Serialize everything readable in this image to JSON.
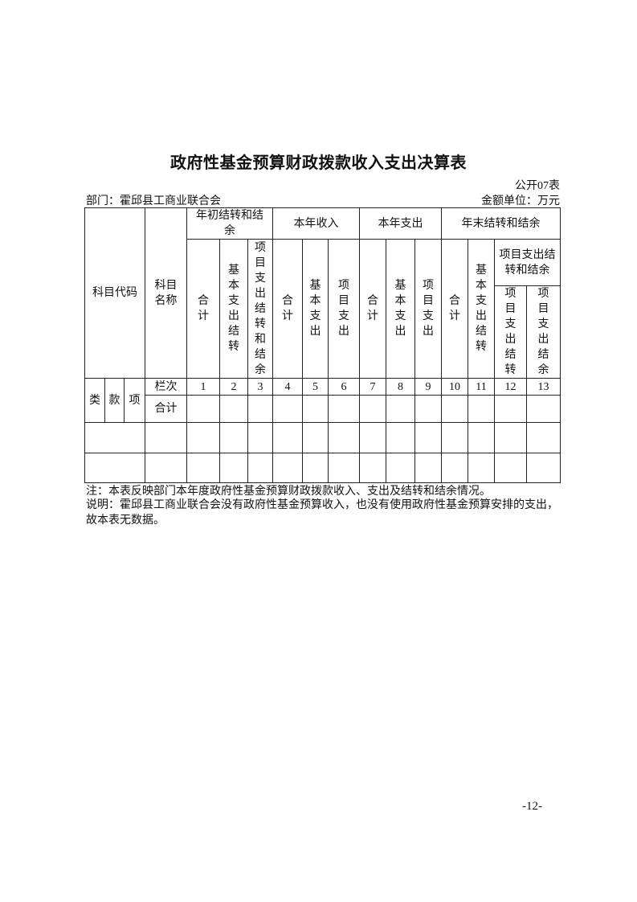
{
  "title": "政府性基金预算财政拨款收入支出决算表",
  "form_no": "公开07表",
  "department": "部门：霍邱县工商业联合会",
  "unit": "金额单位：万元",
  "table": {
    "subject_code": "科目代码",
    "subject_name": "科目名称",
    "groups": {
      "begin": "年初结转和结余",
      "income": "本年收入",
      "expense": "本年支出",
      "end": "年末结转和结余"
    },
    "sub": {
      "total": "合计",
      "basic_carry": "基本支出结转",
      "project_carry_balance": "项目支出结转和结余",
      "basic": "基本支出",
      "project": "项目支出",
      "project_carry": "项目支出结转",
      "project_balance": "项目支出结余"
    },
    "lei": "类",
    "kuan": "款",
    "xiang": "项",
    "column_no_label": "栏次",
    "column_numbers": [
      "1",
      "2",
      "3",
      "4",
      "5",
      "6",
      "7",
      "8",
      "9",
      "10",
      "11",
      "12",
      "13"
    ],
    "total_row_label": "合计"
  },
  "note": "注：本表反映部门本年度政府性基金预算财政拨款收入、支出及结转和结余情况。",
  "explanation": "说明：霍邱县工商业联合会没有政府性基金预算收入，也没有使用政府性基金预算安排的支出，故本表无数据。",
  "page_number": "-12-"
}
